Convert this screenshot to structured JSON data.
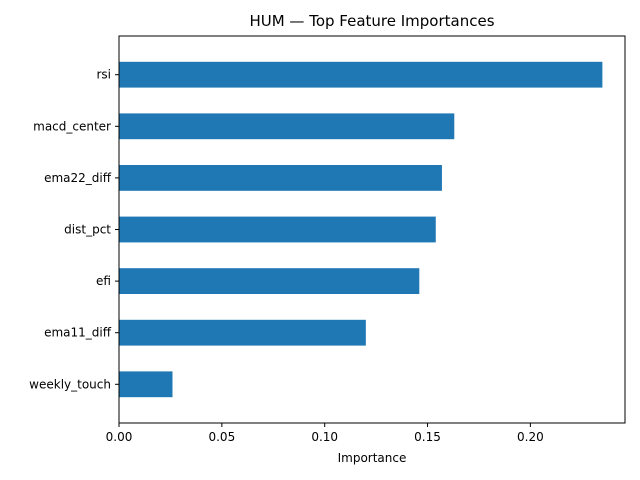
{
  "chart_data": {
    "type": "bar",
    "orientation": "horizontal",
    "title": "HUM — Top Feature Importances",
    "xlabel": "Importance",
    "ylabel": "",
    "categories": [
      "rsi",
      "macd_center",
      "ema22_diff",
      "dist_pct",
      "efi",
      "ema11_diff",
      "weekly_touch"
    ],
    "values": [
      0.235,
      0.163,
      0.157,
      0.154,
      0.146,
      0.12,
      0.026
    ],
    "xlim": [
      0,
      0.246
    ],
    "xticks": [
      0.0,
      0.05,
      0.1,
      0.15,
      0.2
    ],
    "xtick_labels": [
      "0.00",
      "0.05",
      "0.10",
      "0.15",
      "0.20"
    ],
    "grid": false,
    "bar_color": "#1f77b4"
  }
}
